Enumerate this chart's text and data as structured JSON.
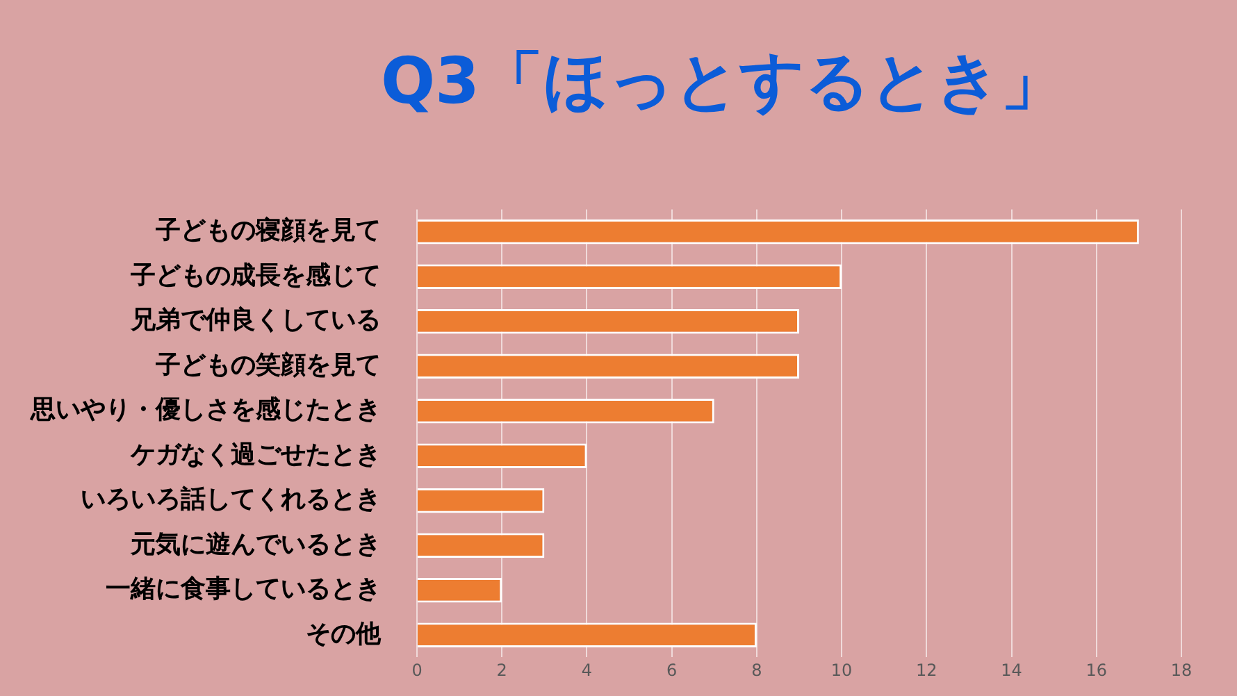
{
  "chart_data": {
    "type": "bar",
    "orientation": "horizontal",
    "title": "Q3「ほっとするとき」",
    "categories": [
      "子どもの寝顔を見て",
      "子どもの成長を感じて",
      "兄弟で仲良くしている",
      "子どもの笑顔を見て",
      "思いやり・優しさを感じたとき",
      "ケガなく過ごせたとき",
      "いろいろ話してくれるとき",
      "元気に遊んでいるとき",
      "一緒に食事しているとき",
      "その他"
    ],
    "values": [
      17,
      10,
      9,
      9,
      7,
      4,
      3,
      3,
      2,
      8
    ],
    "color": "#ed7d31",
    "xlim": [
      0,
      18
    ],
    "xticks": [
      0,
      2,
      4,
      6,
      8,
      10,
      12,
      14,
      16,
      18
    ],
    "grid": "x",
    "legend": false
  }
}
